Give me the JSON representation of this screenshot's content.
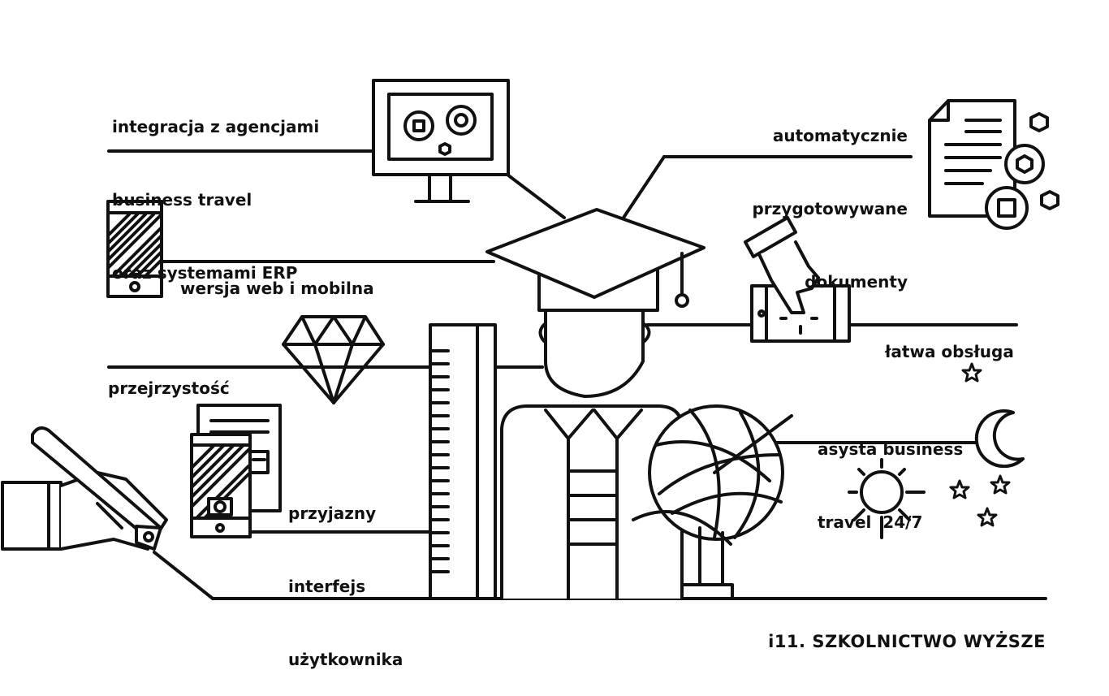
{
  "colors": {
    "stroke": "#111111",
    "background": "#ffffff"
  },
  "labels": {
    "integration": [
      "integracja z agencjami",
      "business travel",
      "oraz systemami ERP"
    ],
    "documents": [
      "automatycznie",
      "przygotowywane",
      "dokumenty"
    ],
    "web_mobile": [
      "wersja web i mobilna"
    ],
    "easy_use": [
      "łatwa obsługa"
    ],
    "transparency": [
      "przejrzystość"
    ],
    "assistance": [
      "asysta business",
      "travel  24/7"
    ],
    "interface": [
      "przyjazny",
      "interfejs",
      "użytkownika"
    ]
  },
  "footer": "i11. SZKOLNICTWO WYŻSZE",
  "icons": [
    "monitor-gears-icon",
    "document-gears-icon",
    "smartphone-icon",
    "hand-tap-icon",
    "diamond-icon",
    "documents-phone-icon",
    "hand-pen-icon",
    "graduate-icon",
    "ruler-icon",
    "globe-icon",
    "moon-icon",
    "sun-icon",
    "star-icon"
  ]
}
